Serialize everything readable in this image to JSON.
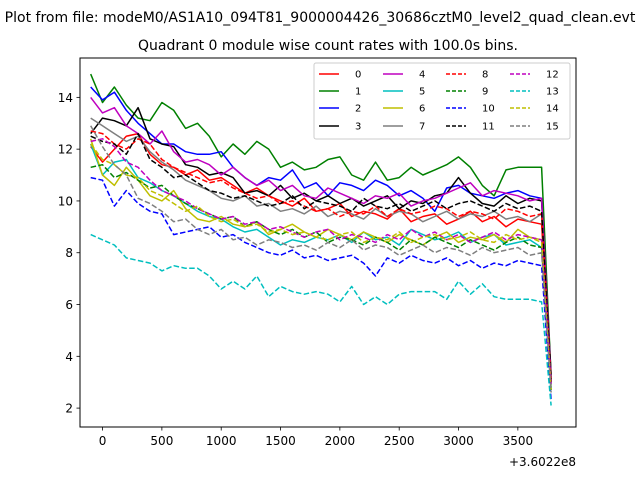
{
  "chart_data": {
    "type": "line",
    "suptitle": "Plot from file: modeM0/AS1A10_094T81_9000004426_30686cztM0_level2_quad_clean.evt",
    "title": "Quadrant 0 module wise count rates with 100.0s bins.",
    "xlabel": "",
    "ylabel": "",
    "x_offset_label": "+3.6022e8",
    "xlim": [
      -190,
      3990
    ],
    "ylim": [
      1.27,
      15.52
    ],
    "x_ticks": [
      0,
      500,
      1000,
      1500,
      2000,
      2500,
      3000,
      3500
    ],
    "x_tick_labels": [
      "0",
      "500",
      "1000",
      "1500",
      "2000",
      "2500",
      "3000",
      "3500"
    ],
    "y_ticks": [
      2,
      4,
      6,
      8,
      10,
      12,
      14
    ],
    "y_tick_labels": [
      "2",
      "4",
      "6",
      "8",
      "10",
      "12",
      "14"
    ],
    "grid": false,
    "legend_placement": "top-right",
    "x": [
      -100,
      0,
      100,
      200,
      300,
      400,
      500,
      600,
      700,
      800,
      900,
      1000,
      1100,
      1200,
      1300,
      1400,
      1500,
      1600,
      1700,
      1800,
      1900,
      2000,
      2100,
      2200,
      2300,
      2400,
      2500,
      2600,
      2700,
      2800,
      2900,
      3000,
      3100,
      3200,
      3300,
      3400,
      3500,
      3600,
      3700,
      3780
    ],
    "series": [
      {
        "name": "0",
        "color": "#ff0000",
        "dash": "solid",
        "values": [
          12.1,
          11.5,
          12.0,
          12.5,
          12.6,
          11.8,
          11.4,
          11.3,
          11.0,
          11.2,
          10.8,
          10.9,
          10.6,
          10.3,
          10.5,
          10.2,
          10.0,
          9.8,
          10.1,
          9.6,
          9.7,
          9.9,
          9.4,
          9.6,
          9.5,
          9.3,
          9.7,
          9.2,
          9.4,
          9.5,
          9.1,
          9.3,
          9.6,
          9.2,
          9.4,
          9.0,
          9.3,
          9.2,
          9.1,
          3.0
        ]
      },
      {
        "name": "1",
        "color": "#008000",
        "dash": "solid",
        "values": [
          14.9,
          13.8,
          14.4,
          13.7,
          13.2,
          13.1,
          13.8,
          13.5,
          12.8,
          13.0,
          12.5,
          11.7,
          12.2,
          11.8,
          12.3,
          12.0,
          11.3,
          11.5,
          11.2,
          11.3,
          11.6,
          11.7,
          11.0,
          10.8,
          11.5,
          10.8,
          10.9,
          11.3,
          11.0,
          11.2,
          11.4,
          11.7,
          11.3,
          10.6,
          10.2,
          11.2,
          11.3,
          11.3,
          11.3,
          3.2
        ]
      },
      {
        "name": "2",
        "color": "#0000ff",
        "dash": "solid",
        "values": [
          14.4,
          13.9,
          14.2,
          13.5,
          13.0,
          12.6,
          12.2,
          12.2,
          11.9,
          11.8,
          11.8,
          11.9,
          11.3,
          10.9,
          10.6,
          10.9,
          10.8,
          11.2,
          10.5,
          10.7,
          10.2,
          10.7,
          10.6,
          10.4,
          10.8,
          10.6,
          10.2,
          10.4,
          10.1,
          9.6,
          10.5,
          10.6,
          10.3,
          10.2,
          10.1,
          10.3,
          10.4,
          10.2,
          10.1,
          3.0
        ]
      },
      {
        "name": "3",
        "color": "#000000",
        "dash": "solid",
        "values": [
          12.6,
          13.2,
          13.1,
          12.9,
          13.6,
          12.4,
          12.2,
          12.1,
          11.4,
          11.3,
          11.0,
          11.1,
          10.9,
          10.3,
          10.4,
          10.2,
          10.6,
          10.1,
          10.3,
          10.0,
          10.2,
          9.9,
          10.1,
          9.8,
          10.0,
          10.2,
          9.7,
          10.0,
          9.9,
          10.2,
          10.3,
          10.9,
          10.3,
          9.9,
          9.8,
          10.2,
          9.9,
          10.1,
          10.0,
          3.3
        ]
      },
      {
        "name": "4",
        "color": "#bf00bf",
        "dash": "solid",
        "values": [
          14.0,
          13.4,
          13.6,
          12.9,
          12.6,
          12.2,
          12.7,
          11.9,
          11.5,
          11.6,
          11.4,
          11.0,
          11.3,
          10.9,
          10.6,
          10.8,
          10.4,
          10.6,
          10.2,
          10.1,
          10.5,
          10.3,
          10.1,
          9.9,
          10.2,
          10.1,
          10.3,
          9.8,
          10.0,
          10.1,
          10.3,
          10.5,
          10.7,
          10.2,
          10.4,
          10.3,
          10.2,
          10.0,
          10.1,
          3.1
        ]
      },
      {
        "name": "5",
        "color": "#00bfbf",
        "dash": "solid",
        "values": [
          12.2,
          11.0,
          11.5,
          11.6,
          10.9,
          10.7,
          10.4,
          10.2,
          9.9,
          9.6,
          9.4,
          9.3,
          9.0,
          8.8,
          8.9,
          8.6,
          8.3,
          8.5,
          8.4,
          8.6,
          8.5,
          8.7,
          8.4,
          8.8,
          8.5,
          8.6,
          8.3,
          8.9,
          8.7,
          8.5,
          8.6,
          8.8,
          8.4,
          8.6,
          8.7,
          8.3,
          8.4,
          8.5,
          8.2,
          2.8
        ]
      },
      {
        "name": "6",
        "color": "#bfbf00",
        "dash": "solid",
        "values": [
          12.4,
          11.0,
          10.6,
          11.3,
          10.8,
          10.2,
          10.0,
          10.4,
          9.7,
          9.3,
          9.2,
          9.4,
          9.1,
          9.0,
          9.2,
          8.7,
          8.9,
          9.1,
          8.8,
          8.6,
          8.9,
          8.7,
          8.5,
          8.8,
          8.6,
          8.4,
          8.7,
          8.5,
          8.3,
          8.6,
          8.8,
          8.4,
          8.6,
          8.5,
          8.7,
          8.4,
          8.9,
          8.6,
          8.5,
          3.0
        ]
      },
      {
        "name": "7",
        "color": "#7f7f7f",
        "dash": "solid",
        "values": [
          13.2,
          12.9,
          12.6,
          12.3,
          12.5,
          11.9,
          11.5,
          11.2,
          10.8,
          10.6,
          10.4,
          10.1,
          10.0,
          10.2,
          9.8,
          9.9,
          9.6,
          9.7,
          9.5,
          9.8,
          9.4,
          9.6,
          9.5,
          9.3,
          9.7,
          9.4,
          9.6,
          9.5,
          9.2,
          9.4,
          9.6,
          9.3,
          9.5,
          9.4,
          9.6,
          9.3,
          9.4,
          9.2,
          9.5,
          2.9
        ]
      },
      {
        "name": "8",
        "color": "#ff0000",
        "dash": "dashed",
        "values": [
          12.7,
          12.6,
          12.2,
          12.0,
          12.4,
          12.2,
          11.6,
          11.3,
          11.1,
          10.9,
          10.7,
          10.8,
          10.5,
          10.3,
          10.1,
          10.2,
          9.9,
          10.0,
          9.8,
          9.6,
          9.7,
          9.4,
          9.6,
          9.5,
          9.8,
          9.4,
          9.7,
          9.5,
          9.6,
          9.8,
          9.7,
          9.4,
          9.6,
          9.5,
          9.3,
          9.7,
          9.6,
          9.4,
          9.5,
          3.0
        ]
      },
      {
        "name": "9",
        "color": "#008000",
        "dash": "dashed",
        "values": [
          11.3,
          11.4,
          10.9,
          11.1,
          10.8,
          10.5,
          10.6,
          10.2,
          9.9,
          9.7,
          9.5,
          9.3,
          9.4,
          9.0,
          9.2,
          8.9,
          8.7,
          8.9,
          8.6,
          8.8,
          8.4,
          8.6,
          8.5,
          8.3,
          8.6,
          8.4,
          8.1,
          8.5,
          8.3,
          8.6,
          8.4,
          8.2,
          8.5,
          8.3,
          8.1,
          8.4,
          8.6,
          8.3,
          8.2,
          2.7
        ]
      },
      {
        "name": "10",
        "color": "#0000ff",
        "dash": "dashed",
        "values": [
          10.9,
          10.8,
          9.8,
          10.4,
          9.9,
          9.6,
          9.5,
          8.7,
          8.8,
          8.9,
          9.0,
          8.6,
          8.7,
          8.4,
          8.2,
          8.0,
          7.9,
          8.1,
          7.8,
          7.9,
          7.7,
          7.8,
          7.9,
          7.6,
          7.1,
          7.8,
          7.6,
          7.9,
          7.7,
          7.6,
          7.8,
          7.5,
          7.7,
          7.4,
          7.6,
          7.5,
          7.7,
          7.6,
          7.5,
          2.3
        ]
      },
      {
        "name": "11",
        "color": "#000000",
        "dash": "dashed",
        "values": [
          12.5,
          12.3,
          12.2,
          11.8,
          12.6,
          11.6,
          11.3,
          10.9,
          11.0,
          10.7,
          10.4,
          10.3,
          10.1,
          10.2,
          10.0,
          9.8,
          9.9,
          10.2,
          9.7,
          10.0,
          9.9,
          9.8,
          9.6,
          10.1,
          9.8,
          9.7,
          9.9,
          9.6,
          9.8,
          10.0,
          9.7,
          9.9,
          10.0,
          9.8,
          9.6,
          9.9,
          9.7,
          9.8,
          9.6,
          3.0
        ]
      },
      {
        "name": "12",
        "color": "#bf00bf",
        "dash": "dashed",
        "values": [
          12.3,
          12.4,
          12.1,
          11.5,
          11.3,
          10.8,
          10.4,
          10.2,
          10.0,
          9.7,
          9.5,
          9.3,
          9.4,
          9.1,
          9.2,
          8.9,
          9.0,
          8.8,
          8.6,
          8.8,
          8.9,
          8.5,
          8.7,
          8.6,
          8.4,
          8.7,
          8.5,
          8.9,
          8.6,
          8.8,
          8.5,
          8.7,
          8.4,
          8.6,
          8.8,
          8.5,
          8.7,
          8.6,
          8.5,
          2.9
        ]
      },
      {
        "name": "13",
        "color": "#00bfbf",
        "dash": "dashed",
        "values": [
          8.7,
          8.5,
          8.3,
          7.8,
          7.7,
          7.6,
          7.3,
          7.5,
          7.4,
          7.4,
          7.1,
          6.6,
          6.9,
          6.6,
          7.1,
          6.3,
          6.7,
          6.5,
          6.4,
          6.5,
          6.4,
          6.1,
          6.7,
          6.0,
          6.3,
          6.0,
          6.4,
          6.5,
          6.5,
          6.5,
          6.2,
          6.9,
          6.4,
          6.8,
          6.3,
          6.2,
          6.2,
          6.2,
          6.1,
          2.1
        ]
      },
      {
        "name": "14",
        "color": "#bfbf00",
        "dash": "dashed",
        "values": [
          12.2,
          11.6,
          11.4,
          11.0,
          10.9,
          10.4,
          10.2,
          9.9,
          9.6,
          9.8,
          9.4,
          9.2,
          9.3,
          9.0,
          9.1,
          8.8,
          8.9,
          8.7,
          8.8,
          8.6,
          8.5,
          8.7,
          8.8,
          8.4,
          8.6,
          8.5,
          8.8,
          8.4,
          8.6,
          8.7,
          8.5,
          8.6,
          8.8,
          8.5,
          8.4,
          8.7,
          8.5,
          8.6,
          8.4,
          2.7
        ]
      },
      {
        "name": "15",
        "color": "#7f7f7f",
        "dash": "dashed",
        "values": [
          12.9,
          12.1,
          11.4,
          11.0,
          10.1,
          9.9,
          9.6,
          9.2,
          9.3,
          8.9,
          8.7,
          8.9,
          8.5,
          8.6,
          8.3,
          8.5,
          8.4,
          8.2,
          8.3,
          8.1,
          8.4,
          8.2,
          8.5,
          8.1,
          8.3,
          8.2,
          7.9,
          8.1,
          8.3,
          8.0,
          8.2,
          8.1,
          7.9,
          8.2,
          8.0,
          8.1,
          8.2,
          7.9,
          8.0,
          2.6
        ]
      }
    ]
  }
}
